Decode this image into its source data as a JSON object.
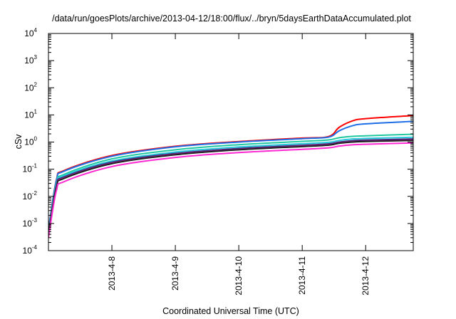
{
  "chart_data": {
    "type": "line",
    "title": "/data/run/goesPlots/archive/2013-04-12/18:00/flux/../bryn/5daysEarthDataAccumulated.plot",
    "xlabel": "Coordinated Universal Time (UTC)",
    "ylabel": "cSv",
    "x_range": [
      "2013-04-07T00:00",
      "2013-04-12T18:00"
    ],
    "x_tick_labels": [
      "2013-4-8",
      "2013-4-9",
      "2013-4-10",
      "2013-4-11",
      "2013-4-12"
    ],
    "x_tick_dates": [
      "2013-04-08",
      "2013-04-09",
      "2013-04-10",
      "2013-04-11",
      "2013-04-12"
    ],
    "y_scale": "log",
    "ylim": [
      0.0001,
      10000
    ],
    "y_tick_labels": [
      {
        "base": "10",
        "exp": "-4",
        "value": 0.0001
      },
      {
        "base": "10",
        "exp": "-3",
        "value": 0.001
      },
      {
        "base": "10",
        "exp": "-2",
        "value": 0.01
      },
      {
        "base": "10",
        "exp": "-1",
        "value": 0.1
      },
      {
        "base": "10",
        "exp": "0",
        "value": 1
      },
      {
        "base": "10",
        "exp": "1",
        "value": 10
      },
      {
        "base": "10",
        "exp": "2",
        "value": 100
      },
      {
        "base": "10",
        "exp": "3",
        "value": 1000
      },
      {
        "base": "10",
        "exp": "4",
        "value": 10000
      }
    ],
    "grid": false,
    "legend": "none",
    "series": [
      {
        "color": "#ff0000",
        "points": [
          [
            "2013-04-07T00:00",
            0.0006
          ],
          [
            "2013-04-07T03:00",
            0.04
          ],
          [
            "2013-04-07T06:00",
            0.09
          ],
          [
            "2013-04-08T00:00",
            0.32
          ],
          [
            "2013-04-09T00:00",
            0.7
          ],
          [
            "2013-04-10T00:00",
            1.05
          ],
          [
            "2013-04-11T00:00",
            1.4
          ],
          [
            "2013-04-11T10:00",
            1.6
          ],
          [
            "2013-04-11T14:00",
            3.5
          ],
          [
            "2013-04-11T19:00",
            6.0
          ],
          [
            "2013-04-12T00:00",
            7.3
          ],
          [
            "2013-04-12T18:00",
            9.5
          ]
        ]
      },
      {
        "color": "#1e6fe6",
        "points": [
          [
            "2013-04-07T00:00",
            0.0006
          ],
          [
            "2013-04-07T03:00",
            0.038
          ],
          [
            "2013-04-07T06:00",
            0.085
          ],
          [
            "2013-04-08T00:00",
            0.3
          ],
          [
            "2013-04-09T00:00",
            0.67
          ],
          [
            "2013-04-10T00:00",
            1.0
          ],
          [
            "2013-04-11T00:00",
            1.33
          ],
          [
            "2013-04-11T10:00",
            1.52
          ],
          [
            "2013-04-11T14:00",
            2.6
          ],
          [
            "2013-04-11T19:00",
            4.0
          ],
          [
            "2013-04-12T00:00",
            4.7
          ],
          [
            "2013-04-12T18:00",
            5.8
          ]
        ]
      },
      {
        "color": "#20c8a0",
        "points": [
          [
            "2013-04-07T00:00",
            0.0005
          ],
          [
            "2013-04-07T03:00",
            0.03
          ],
          [
            "2013-04-07T06:00",
            0.065
          ],
          [
            "2013-04-08T00:00",
            0.24
          ],
          [
            "2013-04-09T00:00",
            0.52
          ],
          [
            "2013-04-10T00:00",
            0.8
          ],
          [
            "2013-04-11T00:00",
            1.06
          ],
          [
            "2013-04-11T10:00",
            1.2
          ],
          [
            "2013-04-11T14:00",
            1.45
          ],
          [
            "2013-04-11T19:00",
            1.62
          ],
          [
            "2013-04-12T00:00",
            1.7
          ],
          [
            "2013-04-12T18:00",
            1.95
          ]
        ]
      },
      {
        "color": "#28c8dc",
        "points": [
          [
            "2013-04-07T00:00",
            0.0005
          ],
          [
            "2013-04-07T03:00",
            0.027
          ],
          [
            "2013-04-07T06:00",
            0.058
          ],
          [
            "2013-04-08T00:00",
            0.2
          ],
          [
            "2013-04-09T00:00",
            0.43
          ],
          [
            "2013-04-10T00:00",
            0.66
          ],
          [
            "2013-04-11T00:00",
            0.87
          ],
          [
            "2013-04-11T10:00",
            0.98
          ],
          [
            "2013-04-11T14:00",
            1.15
          ],
          [
            "2013-04-11T19:00",
            1.3
          ],
          [
            "2013-04-12T00:00",
            1.36
          ],
          [
            "2013-04-12T18:00",
            1.5
          ]
        ]
      },
      {
        "color": "#3b2a78",
        "points": [
          [
            "2013-04-07T00:00",
            0.0004
          ],
          [
            "2013-04-07T03:00",
            0.024
          ],
          [
            "2013-04-07T06:00",
            0.052
          ],
          [
            "2013-04-08T00:00",
            0.18
          ],
          [
            "2013-04-09T00:00",
            0.38
          ],
          [
            "2013-04-10T00:00",
            0.58
          ],
          [
            "2013-04-11T00:00",
            0.76
          ],
          [
            "2013-04-11T10:00",
            0.86
          ],
          [
            "2013-04-11T14:00",
            1.0
          ],
          [
            "2013-04-11T19:00",
            1.12
          ],
          [
            "2013-04-12T00:00",
            1.18
          ],
          [
            "2013-04-12T18:00",
            1.3
          ]
        ]
      },
      {
        "color": "#d21ea0",
        "points": [
          [
            "2013-04-07T00:00",
            0.0004
          ],
          [
            "2013-04-07T03:00",
            0.022
          ],
          [
            "2013-04-07T06:00",
            0.048
          ],
          [
            "2013-04-08T00:00",
            0.165
          ],
          [
            "2013-04-09T00:00",
            0.35
          ],
          [
            "2013-04-10T00:00",
            0.53
          ],
          [
            "2013-04-11T00:00",
            0.7
          ],
          [
            "2013-04-11T10:00",
            0.79
          ],
          [
            "2013-04-11T14:00",
            0.92
          ],
          [
            "2013-04-11T19:00",
            1.02
          ],
          [
            "2013-04-12T00:00",
            1.07
          ],
          [
            "2013-04-12T18:00",
            1.18
          ]
        ]
      },
      {
        "color": "#202020",
        "points": [
          [
            "2013-04-07T00:00",
            0.0004
          ],
          [
            "2013-04-07T03:00",
            0.021
          ],
          [
            "2013-04-07T06:00",
            0.046
          ],
          [
            "2013-04-08T00:00",
            0.16
          ],
          [
            "2013-04-09T00:00",
            0.34
          ],
          [
            "2013-04-10T00:00",
            0.52
          ],
          [
            "2013-04-11T00:00",
            0.68
          ],
          [
            "2013-04-11T10:00",
            0.77
          ],
          [
            "2013-04-11T14:00",
            0.9
          ],
          [
            "2013-04-11T19:00",
            1.0
          ],
          [
            "2013-04-12T00:00",
            1.05
          ],
          [
            "2013-04-12T18:00",
            1.15
          ]
        ]
      },
      {
        "color": "#ff28d2",
        "points": [
          [
            "2013-04-07T00:00",
            0.0003
          ],
          [
            "2013-04-07T03:00",
            0.016
          ],
          [
            "2013-04-07T06:00",
            0.035
          ],
          [
            "2013-04-08T00:00",
            0.125
          ],
          [
            "2013-04-09T00:00",
            0.27
          ],
          [
            "2013-04-10T00:00",
            0.41
          ],
          [
            "2013-04-11T00:00",
            0.54
          ],
          [
            "2013-04-11T10:00",
            0.61
          ],
          [
            "2013-04-11T14:00",
            0.71
          ],
          [
            "2013-04-11T19:00",
            0.79
          ],
          [
            "2013-04-12T00:00",
            0.83
          ],
          [
            "2013-04-12T18:00",
            0.93
          ]
        ]
      }
    ]
  }
}
